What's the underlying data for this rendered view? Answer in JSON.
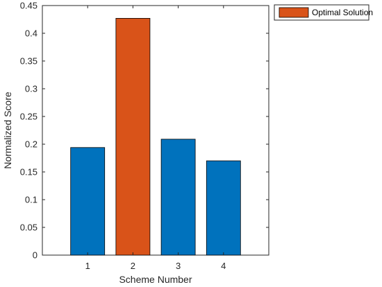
{
  "chart_data": {
    "type": "bar",
    "categories": [
      "1",
      "2",
      "3",
      "4"
    ],
    "values": [
      0.194,
      0.427,
      0.209,
      0.17
    ],
    "bar_colors": [
      "#0072BD",
      "#D95319",
      "#0072BD",
      "#0072BD"
    ],
    "highlight_index": 1,
    "xlabel": "Scheme Number",
    "ylabel": "Normalized Score",
    "ylim": [
      0,
      0.45
    ],
    "yticks": [
      "0",
      "0.05",
      "0.1",
      "0.15",
      "0.2",
      "0.25",
      "0.3",
      "0.35",
      "0.4",
      "0.45"
    ],
    "grid": false,
    "legend": {
      "placement": "outside-top-right",
      "entries": [
        {
          "name": "Optimal Solution",
          "color": "#D95319"
        }
      ]
    }
  }
}
